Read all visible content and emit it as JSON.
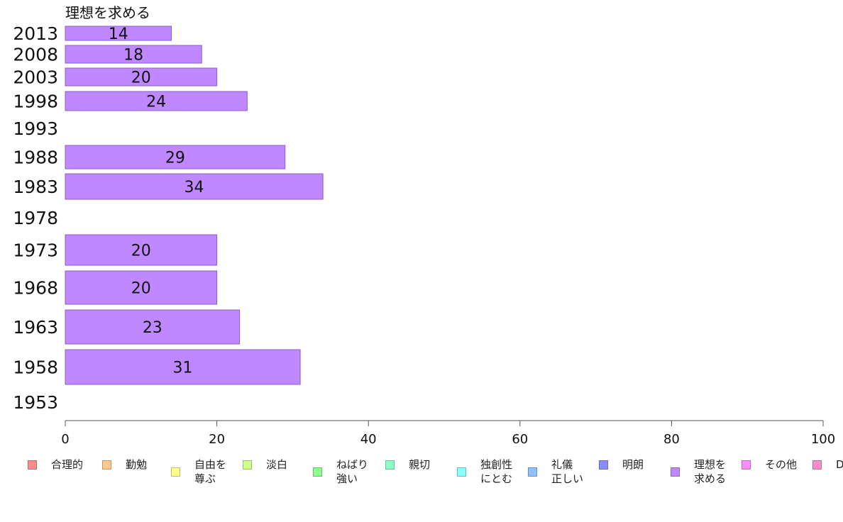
{
  "chart_data": {
    "type": "bar",
    "orientation": "horizontal",
    "title": "理想を求める",
    "categories": [
      "2013",
      "2008",
      "2003",
      "1998",
      "1993",
      "1988",
      "1983",
      "1978",
      "1973",
      "1968",
      "1963",
      "1958",
      "1953"
    ],
    "series": [
      {
        "name": "理想を求める",
        "color": "#bf88ff",
        "values": [
          14,
          18,
          20,
          24,
          null,
          29,
          34,
          null,
          20,
          20,
          23,
          31,
          null
        ]
      }
    ],
    "data_labels": [
      "14",
      "18",
      "20",
      "24",
      "",
      "29",
      "34",
      "",
      "20",
      "20",
      "23",
      "31",
      ""
    ],
    "xlim": [
      0,
      100
    ],
    "xticks": [
      0,
      20,
      40,
      60,
      80,
      100
    ],
    "grid": false,
    "legend_position": "bottom",
    "legend": [
      {
        "label": "合理的",
        "color": "#ff8c8c"
      },
      {
        "label": "勤勉",
        "color": "#ffc88c"
      },
      {
        "label": "自由を\n尊ぶ",
        "color": "#ffff8c"
      },
      {
        "label": "淡白",
        "color": "#d2ff8c"
      },
      {
        "label": "ねばり\n強い",
        "color": "#8cff8c"
      },
      {
        "label": "親切",
        "color": "#8cffc8"
      },
      {
        "label": "独創性\nにとむ",
        "color": "#8cffff"
      },
      {
        "label": "礼儀\n正しい",
        "color": "#8cc0ff"
      },
      {
        "label": "明朗",
        "color": "#8c8cff"
      },
      {
        "label": "理想を\n求める",
        "color": "#bf88ff"
      },
      {
        "label": "その他",
        "color": "#ff8cff"
      },
      {
        "label": "D",
        "color": "#ff8cc8"
      }
    ]
  }
}
